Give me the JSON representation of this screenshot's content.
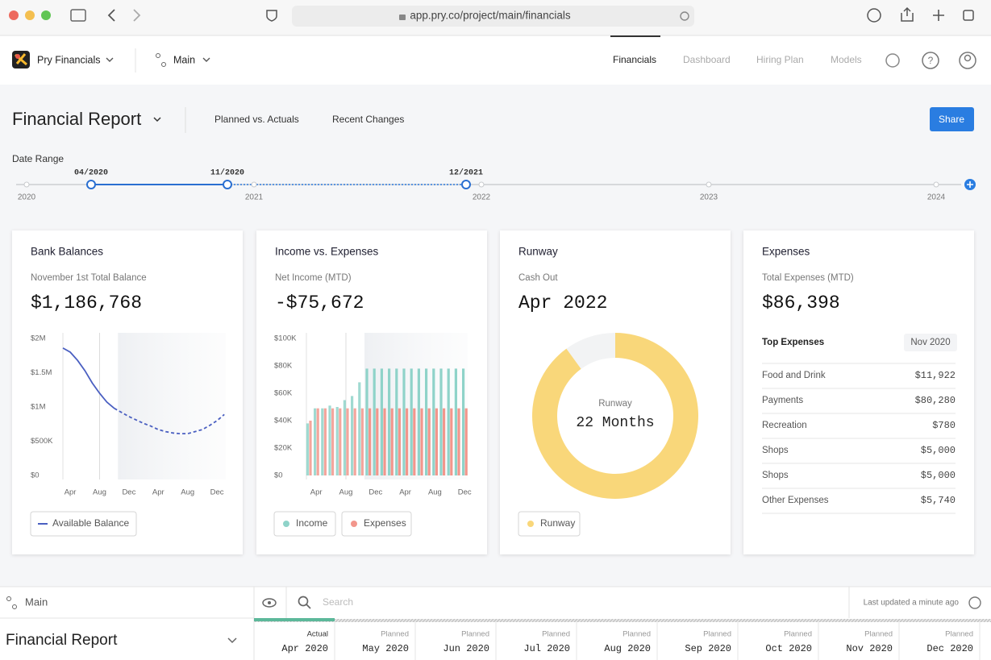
{
  "browser": {
    "url": "app.pry.co/project/main/financials"
  },
  "nav": {
    "workspace": "Pry Financials",
    "branch": "Main",
    "tabs": [
      "Financials",
      "Dashboard",
      "Hiring Plan",
      "Models"
    ]
  },
  "header": {
    "title": "Financial Report",
    "links": [
      "Planned vs. Actuals",
      "Recent Changes"
    ],
    "share": "Share"
  },
  "date_range": {
    "label": "Date Range",
    "years": [
      "2020",
      "2021",
      "2022",
      "2023",
      "2024"
    ],
    "markers": [
      "04/2020",
      "11/2020",
      "12/2021"
    ]
  },
  "chart_data": [
    {
      "type": "line",
      "title": "Bank Balances",
      "subtitle": "November 1st Total Balance",
      "headline": "$1,186,768",
      "categories": [
        null,
        "Apr",
        null,
        null,
        null,
        "Aug",
        null,
        null,
        null,
        "Dec",
        null,
        null,
        null,
        "Apr",
        null,
        null,
        null,
        "Aug",
        null,
        null,
        null,
        "Dec",
        null
      ],
      "series": [
        {
          "name": "Available Balance",
          "color": "#4a5fc1",
          "values": [
            1860000,
            1800000,
            1680000,
            1530000,
            1350000,
            1200000,
            1070000,
            980000,
            920000,
            860000,
            810000,
            760000,
            720000,
            670000,
            640000,
            620000,
            610000,
            610000,
            640000,
            670000,
            730000,
            800000,
            890000
          ]
        }
      ],
      "forecast_from": 8,
      "today_index": 5,
      "ylim": [
        0,
        2000000
      ],
      "yticks": [
        {
          "value": 0,
          "label": "$0"
        },
        {
          "value": 500000,
          "label": "$500K"
        },
        {
          "value": 1000000,
          "label": "$1M"
        },
        {
          "value": 1500000,
          "label": "$1.5M"
        },
        {
          "value": 2000000,
          "label": "$2M"
        }
      ]
    },
    {
      "type": "bar",
      "title": "Income vs. Expenses",
      "subtitle": "Net Income (MTD)",
      "headline": "-$75,672",
      "categories": [
        null,
        "Apr",
        null,
        null,
        null,
        "Aug",
        null,
        null,
        null,
        "Dec",
        null,
        null,
        null,
        "Apr",
        null,
        null,
        null,
        "Aug",
        null,
        null,
        null,
        "Dec"
      ],
      "series": [
        {
          "name": "Income",
          "color": "#8fd3c9",
          "values": [
            38000,
            49000,
            49000,
            51000,
            50000,
            55000,
            58000,
            68000,
            78000,
            78000,
            78000,
            78000,
            78000,
            78000,
            78000,
            78000,
            78000,
            78000,
            78000,
            78000,
            78000,
            78000
          ]
        },
        {
          "name": "Expenses",
          "color": "#f2968c",
          "values": [
            40000,
            49000,
            49000,
            49000,
            49000,
            49000,
            49000,
            49000,
            49000,
            49000,
            49000,
            49000,
            49000,
            49000,
            49000,
            49000,
            49000,
            49000,
            49000,
            49000,
            49000,
            49000
          ]
        }
      ],
      "forecast_from": 8,
      "today_index": 5,
      "ylim": [
        0,
        100000
      ],
      "yticks": [
        {
          "value": 0,
          "label": "$0"
        },
        {
          "value": 20000,
          "label": "$20K"
        },
        {
          "value": 40000,
          "label": "$40K"
        },
        {
          "value": 60000,
          "label": "$60K"
        },
        {
          "value": 80000,
          "label": "$80K"
        },
        {
          "value": 100000,
          "label": "$100K"
        }
      ]
    },
    {
      "type": "pie",
      "title": "Runway",
      "subtitle": "Cash Out",
      "headline": "Apr 2022",
      "center_label": "Runway",
      "center_value": "22 Months",
      "categories": [
        "Runway",
        null
      ],
      "values": [
        90,
        10
      ],
      "colors": [
        "#f9d77a",
        "#f2f3f4"
      ]
    }
  ],
  "expenses": {
    "title": "Expenses",
    "subtitle": "Total Expenses (MTD)",
    "headline": "$86,398",
    "table_title": "Top Expenses",
    "period": "Nov 2020",
    "rows": [
      [
        "Food and Drink",
        "$11,922"
      ],
      [
        "Payments",
        "$80,280"
      ],
      [
        "Recreation",
        "$780"
      ],
      [
        "Shops",
        "$5,000"
      ],
      [
        "Shops",
        "$5,000"
      ],
      [
        "Other Expenses",
        "$5,740"
      ]
    ]
  },
  "bottom": {
    "branch": "Main",
    "search": "Search",
    "updated": "Last updated a minute ago",
    "title": "Financial Report",
    "columns": [
      [
        "Actual",
        "Apr 2020"
      ],
      [
        "Planned",
        "May 2020"
      ],
      [
        "Planned",
        "Jun 2020"
      ],
      [
        "Planned",
        "Jul 2020"
      ],
      [
        "Planned",
        "Aug 2020"
      ],
      [
        "Planned",
        "Sep 2020"
      ],
      [
        "Planned",
        "Oct 2020"
      ],
      [
        "Planned",
        "Nov 2020"
      ],
      [
        "Planned",
        "Dec 2020"
      ]
    ]
  }
}
